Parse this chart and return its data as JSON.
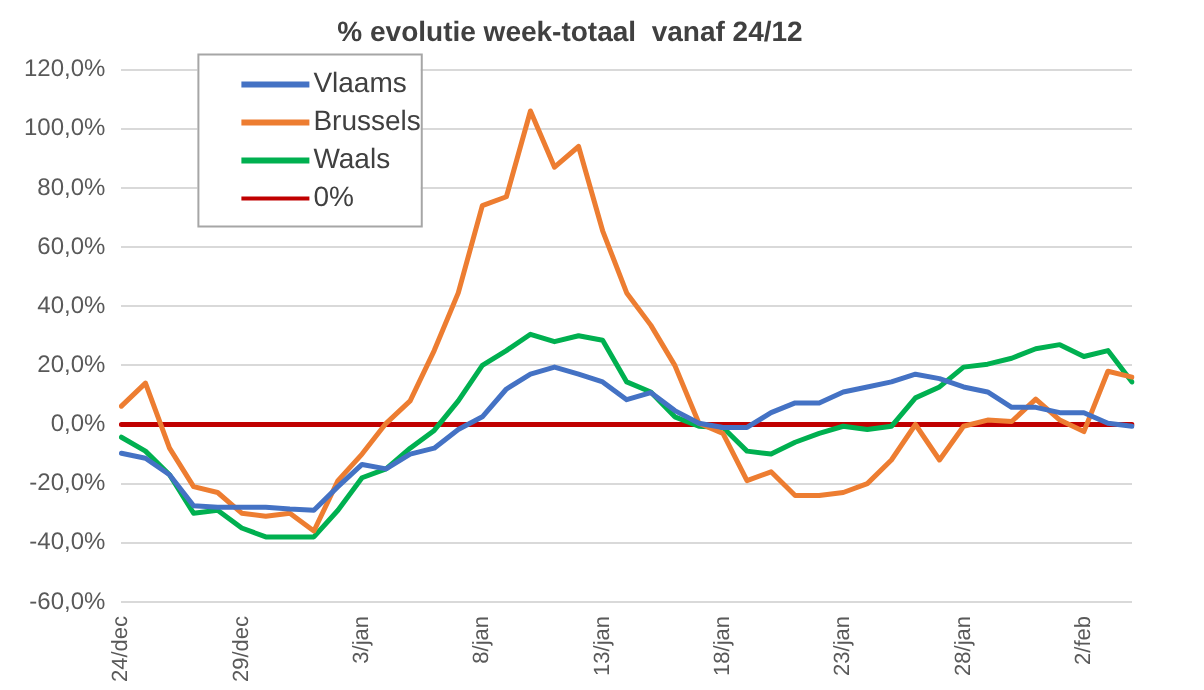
{
  "chart_data": {
    "type": "line",
    "title": "% evolutie week-totaal  vanaf 24/12",
    "categories": [
      "24/dec",
      null,
      null,
      null,
      null,
      "29/dec",
      null,
      null,
      null,
      null,
      "3/jan",
      null,
      null,
      null,
      null,
      "8/jan",
      null,
      null,
      null,
      null,
      "13/jan",
      null,
      null,
      null,
      null,
      "18/jan",
      null,
      null,
      null,
      null,
      "23/jan",
      null,
      null,
      null,
      null,
      "28/jan",
      null,
      null,
      null,
      null,
      "2/feb",
      null,
      null
    ],
    "series": [
      {
        "name": "Vlaams",
        "color": "#4472c4",
        "values": [
          -9.7,
          -11.4,
          -17,
          -27.5,
          -28,
          -28,
          -28,
          -28.6,
          -29,
          -21,
          -13.5,
          -15,
          -10,
          -8,
          -1.7,
          2.6,
          12,
          17,
          19.4,
          17,
          14.4,
          8.4,
          10.8,
          4.7,
          0.4,
          -1,
          -1,
          4,
          7.3,
          7.3,
          11,
          12.7,
          14.4,
          17,
          15.5,
          12.7,
          11,
          5.8,
          5.8,
          4,
          4,
          0.4,
          -0.6
        ]
      },
      {
        "name": "Brussels",
        "color": "#ed7d31",
        "values": [
          6.2,
          14,
          -8,
          -21,
          -23,
          -30,
          -31,
          -30,
          -36,
          -19,
          -10,
          0.4,
          8,
          25,
          44.5,
          74,
          77,
          106,
          87,
          94,
          65.5,
          44.5,
          33.6,
          20,
          0.4,
          -3,
          -19,
          -16,
          -24,
          -24,
          -23,
          -20,
          -12,
          0,
          -12,
          -0.6,
          1.5,
          1,
          8.6,
          1.5,
          -2.4,
          18,
          16
        ]
      },
      {
        "name": "Waals",
        "color": "#00b050",
        "values": [
          -4.3,
          -9,
          -17,
          -30,
          -29,
          -35,
          -38,
          -38,
          -38,
          -29,
          -18,
          -15,
          -8,
          -2,
          8,
          20,
          25,
          30.5,
          28,
          30,
          28.5,
          14.4,
          11,
          2.6,
          -0.6,
          -1,
          -9,
          -10,
          -6,
          -3,
          -0.6,
          -1.7,
          -0.6,
          9,
          12.7,
          19.4,
          20.4,
          22.4,
          25.6,
          27,
          23,
          25,
          14.4
        ]
      },
      {
        "name": "0%",
        "color": "#c00000",
        "values": [
          0,
          0,
          0,
          0,
          0,
          0,
          0,
          0,
          0,
          0,
          0,
          0,
          0,
          0,
          0,
          0,
          0,
          0,
          0,
          0,
          0,
          0,
          0,
          0,
          0,
          0,
          0,
          0,
          0,
          0,
          0,
          0,
          0,
          0,
          0,
          0,
          0,
          0,
          0,
          0,
          0,
          0,
          0
        ]
      }
    ],
    "ylim": [
      -60,
      120
    ],
    "yticks": [
      {
        "value": -60,
        "label": "-60,0%"
      },
      {
        "value": -40,
        "label": "-40,0%"
      },
      {
        "value": -20,
        "label": "-20,0%"
      },
      {
        "value": 0,
        "label": "0,0%"
      },
      {
        "value": 20,
        "label": "20,0%"
      },
      {
        "value": 40,
        "label": "40,0%"
      },
      {
        "value": 60,
        "label": "60,0%"
      },
      {
        "value": 80,
        "label": "80,0%"
      },
      {
        "value": 100,
        "label": "100,0%"
      },
      {
        "value": 120,
        "label": "120,0%"
      }
    ],
    "grid": "y",
    "legend": "top left",
    "marker": "none",
    "line_style": "solid"
  }
}
